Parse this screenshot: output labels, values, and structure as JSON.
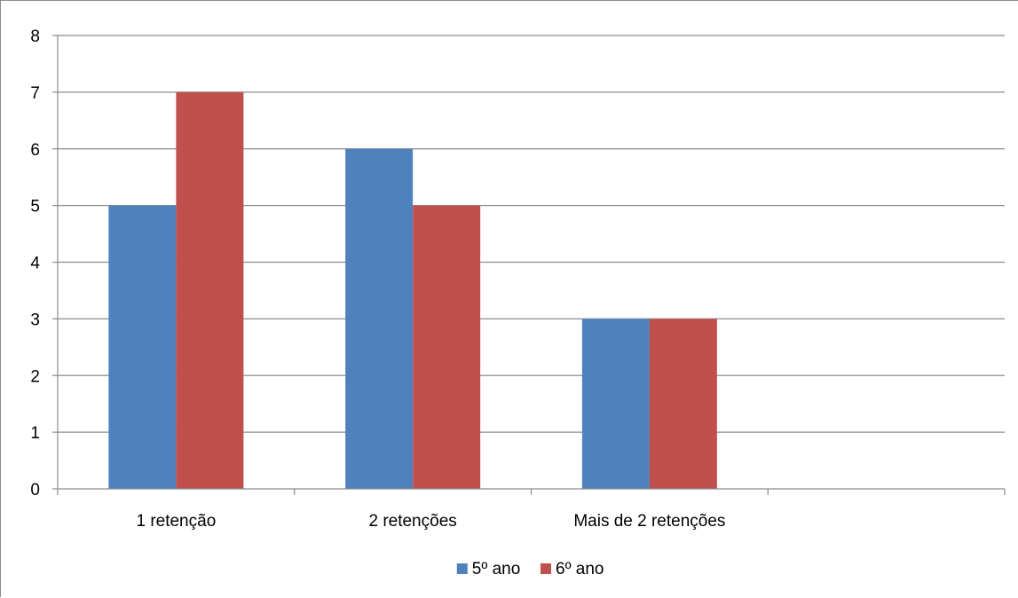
{
  "chart_data": {
    "type": "bar",
    "title": "",
    "xlabel": "",
    "ylabel": "",
    "categories": [
      "1 retenção",
      "2 retenções",
      "Mais de 2 retenções",
      ""
    ],
    "series": [
      {
        "name": "5º ano",
        "values": [
          5,
          6,
          3,
          null
        ],
        "color": "#4F81BD"
      },
      {
        "name": "6º ano",
        "values": [
          7,
          5,
          3,
          null
        ],
        "color": "#C0504D"
      }
    ],
    "ylim": [
      0,
      8
    ],
    "yticks": [
      0,
      1,
      2,
      3,
      4,
      5,
      6,
      7,
      8
    ],
    "grid": true,
    "legend_position": "bottom"
  }
}
